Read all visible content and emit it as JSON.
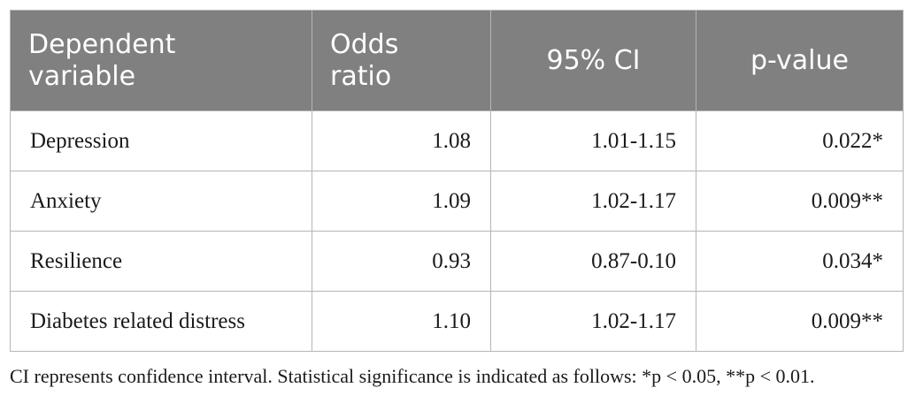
{
  "table": {
    "headers": [
      {
        "line1": "Dependent",
        "line2": "variable"
      },
      {
        "line1": "Odds",
        "line2": "ratio"
      },
      {
        "line1": "95% CI",
        "line2": ""
      },
      {
        "line1": "p-value",
        "line2": ""
      }
    ],
    "rows": [
      {
        "variable": "Depression",
        "odds_ratio": "1.08",
        "ci": "1.01-1.15",
        "p_value": "0.022*"
      },
      {
        "variable": "Anxiety",
        "odds_ratio": "1.09",
        "ci": "1.02-1.17",
        "p_value": "0.009**"
      },
      {
        "variable": "Resilience",
        "odds_ratio": "0.93",
        "ci": "0.87-0.10",
        "p_value": "0.034*"
      },
      {
        "variable": "Diabetes related distress",
        "odds_ratio": "1.10",
        "ci": "1.02-1.17",
        "p_value": "0.009**"
      }
    ]
  },
  "footnote": "CI represents confidence interval. Statistical significance is indicated as follows: *p < 0.05, **p < 0.01."
}
